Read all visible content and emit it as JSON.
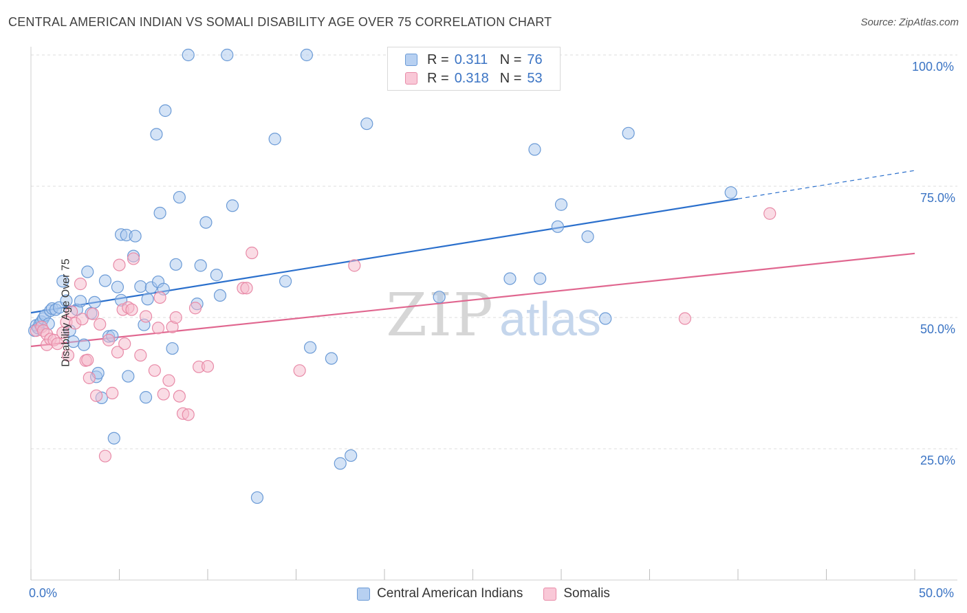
{
  "title": "CENTRAL AMERICAN INDIAN VS SOMALI DISABILITY AGE OVER 75 CORRELATION CHART",
  "source": "Source: ZipAtlas.com",
  "watermark": {
    "zip": "ZIP",
    "atlas": "atlas"
  },
  "legend": {
    "r_label": "R =",
    "n_label": "N =",
    "rows": [
      {
        "name": "Central American Indians",
        "r": "0.311",
        "n": "76"
      },
      {
        "name": "Somalis",
        "r": "0.318",
        "n": "53"
      }
    ]
  },
  "chart_data": {
    "type": "scatter",
    "title": "CENTRAL AMERICAN INDIAN VS SOMALI DISABILITY AGE OVER 75 CORRELATION CHART",
    "xlabel": "",
    "ylabel": "Disability Age Over 75",
    "xlim": [
      0,
      50
    ],
    "ylim": [
      0,
      100
    ],
    "x_tick_labels": [
      "0.0%",
      "50.0%"
    ],
    "y_tick_labels": [
      "100.0%",
      "75.0%",
      "50.0%",
      "25.0%"
    ],
    "y_ticks": [
      100,
      75,
      50,
      25
    ],
    "grid": true,
    "colors": {
      "blue_fill": "#a9c8ee",
      "blue_stroke": "#6a9ad6",
      "blue_line": "#2a6fcc",
      "pink_fill": "#f6b9cc",
      "pink_stroke": "#e88aa7",
      "pink_line": "#e0668f"
    },
    "series": [
      {
        "name": "Central American Indians",
        "color": "blue",
        "trend": {
          "x0": 0,
          "y0": 50.9,
          "x1": 40,
          "y1": 72.6,
          "dash_to_x": 50,
          "dash_to_y": 78.0
        },
        "points": [
          [
            0.2,
            47.5
          ],
          [
            0.3,
            48.5
          ],
          [
            0.4,
            48.0
          ],
          [
            0.5,
            48.8
          ],
          [
            0.6,
            49.2
          ],
          [
            0.7,
            49.8
          ],
          [
            0.8,
            50.4
          ],
          [
            1.0,
            48.8
          ],
          [
            1.1,
            51.3
          ],
          [
            1.2,
            51.7
          ],
          [
            1.4,
            51.5
          ],
          [
            1.6,
            51.9
          ],
          [
            1.8,
            56.9
          ],
          [
            2.0,
            53.2
          ],
          [
            2.2,
            47.5
          ],
          [
            2.4,
            45.4
          ],
          [
            2.6,
            51.5
          ],
          [
            2.8,
            53.1
          ],
          [
            3.0,
            44.8
          ],
          [
            3.2,
            58.7
          ],
          [
            3.4,
            50.8
          ],
          [
            3.6,
            52.9
          ],
          [
            3.7,
            38.7
          ],
          [
            3.8,
            39.4
          ],
          [
            4.0,
            34.7
          ],
          [
            4.2,
            57.0
          ],
          [
            4.4,
            46.4
          ],
          [
            4.6,
            46.5
          ],
          [
            4.7,
            27.0
          ],
          [
            4.9,
            55.8
          ],
          [
            5.1,
            65.8
          ],
          [
            5.1,
            53.3
          ],
          [
            5.4,
            65.7
          ],
          [
            5.5,
            38.8
          ],
          [
            5.8,
            61.7
          ],
          [
            5.9,
            65.5
          ],
          [
            6.2,
            55.9
          ],
          [
            6.4,
            48.6
          ],
          [
            6.5,
            34.8
          ],
          [
            6.6,
            53.5
          ],
          [
            6.8,
            55.7
          ],
          [
            7.1,
            84.9
          ],
          [
            7.2,
            56.8
          ],
          [
            7.3,
            69.9
          ],
          [
            7.5,
            55.4
          ],
          [
            7.6,
            89.4
          ],
          [
            8.0,
            44.1
          ],
          [
            8.2,
            60.1
          ],
          [
            8.4,
            72.9
          ],
          [
            8.9,
            100.0
          ],
          [
            9.4,
            52.6
          ],
          [
            9.6,
            59.9
          ],
          [
            9.9,
            68.1
          ],
          [
            10.5,
            58.1
          ],
          [
            10.7,
            54.2
          ],
          [
            11.1,
            100.0
          ],
          [
            11.4,
            71.3
          ],
          [
            12.8,
            15.7
          ],
          [
            13.8,
            84.0
          ],
          [
            14.4,
            56.9
          ],
          [
            15.6,
            100.0
          ],
          [
            15.8,
            44.3
          ],
          [
            17.0,
            42.2
          ],
          [
            17.5,
            22.2
          ],
          [
            18.1,
            23.7
          ],
          [
            19.0,
            86.9
          ],
          [
            23.1,
            53.9
          ],
          [
            27.1,
            57.4
          ],
          [
            28.5,
            82.0
          ],
          [
            28.8,
            57.4
          ],
          [
            29.8,
            67.3
          ],
          [
            30.0,
            71.5
          ],
          [
            31.5,
            65.4
          ],
          [
            32.5,
            49.8
          ],
          [
            33.8,
            85.1
          ],
          [
            39.6,
            73.8
          ]
        ]
      },
      {
        "name": "Somalis",
        "color": "pink",
        "trend": {
          "x0": 0,
          "y0": 44.5,
          "x1": 50,
          "y1": 62.2
        },
        "points": [
          [
            0.3,
            47.5
          ],
          [
            0.6,
            48.2
          ],
          [
            0.7,
            47.5
          ],
          [
            0.9,
            46.8
          ],
          [
            0.9,
            44.8
          ],
          [
            1.1,
            45.9
          ],
          [
            1.3,
            45.7
          ],
          [
            1.5,
            45.0
          ],
          [
            1.8,
            47.1
          ],
          [
            2.0,
            49.1
          ],
          [
            2.1,
            42.8
          ],
          [
            2.3,
            51.1
          ],
          [
            2.5,
            48.9
          ],
          [
            2.8,
            56.4
          ],
          [
            2.9,
            49.7
          ],
          [
            3.1,
            41.8
          ],
          [
            3.3,
            38.5
          ],
          [
            3.5,
            50.7
          ],
          [
            3.7,
            35.1
          ],
          [
            3.9,
            48.7
          ],
          [
            4.2,
            23.6
          ],
          [
            4.4,
            45.7
          ],
          [
            4.6,
            35.6
          ],
          [
            4.9,
            43.4
          ],
          [
            5.0,
            60.0
          ],
          [
            5.2,
            51.5
          ],
          [
            5.5,
            51.9
          ],
          [
            5.7,
            51.5
          ],
          [
            5.8,
            61.2
          ],
          [
            6.2,
            42.8
          ],
          [
            6.5,
            50.2
          ],
          [
            7.0,
            39.9
          ],
          [
            7.2,
            48.0
          ],
          [
            7.3,
            53.8
          ],
          [
            7.5,
            35.4
          ],
          [
            7.8,
            38.0
          ],
          [
            8.0,
            48.2
          ],
          [
            8.2,
            50.0
          ],
          [
            8.4,
            35.0
          ],
          [
            8.6,
            31.7
          ],
          [
            8.9,
            31.5
          ],
          [
            9.3,
            51.8
          ],
          [
            9.5,
            40.6
          ],
          [
            10.0,
            40.7
          ],
          [
            12.0,
            55.6
          ],
          [
            12.2,
            55.6
          ],
          [
            12.5,
            62.3
          ],
          [
            15.2,
            39.9
          ],
          [
            18.3,
            59.9
          ],
          [
            37.0,
            49.8
          ],
          [
            41.8,
            69.8
          ],
          [
            3.2,
            41.9
          ],
          [
            5.3,
            45.0
          ]
        ]
      }
    ]
  }
}
